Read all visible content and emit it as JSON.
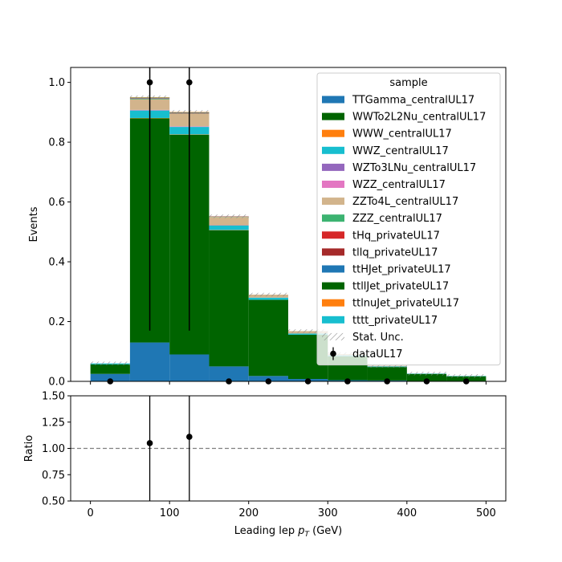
{
  "chart_data": [
    {
      "type": "bar",
      "stacked": true,
      "title": "",
      "xlabel": "",
      "ylabel": "Events",
      "xlim": [
        -25,
        525
      ],
      "ylim": [
        0,
        1.05
      ],
      "yticks": [
        0.0,
        0.2,
        0.4,
        0.6,
        0.8,
        1.0
      ],
      "ytick_labels": [
        "0.0",
        "0.2",
        "0.4",
        "0.6",
        "0.8",
        "1.0"
      ],
      "bin_edges": [
        0,
        50,
        100,
        150,
        200,
        250,
        300,
        350,
        400,
        450,
        500
      ],
      "series": [
        {
          "name": "TTGamma_centralUL17",
          "color": "#1f77b4",
          "values": [
            0.025,
            0.13,
            0.09,
            0.05,
            0.018,
            0.008,
            0.004,
            0.003,
            0.001,
            0.001
          ]
        },
        {
          "name": "WWTo2L2Nu_centralUL17",
          "color": "#006400",
          "values": [
            0.032,
            0.75,
            0.735,
            0.455,
            0.255,
            0.148,
            0.08,
            0.045,
            0.024,
            0.016
          ]
        },
        {
          "name": "WWW_centralUL17",
          "color": "#ff7f0e",
          "values": [
            0.0,
            0.001,
            0.001,
            0.001,
            0.0,
            0.0,
            0.0,
            0.0,
            0.0,
            0.0
          ]
        },
        {
          "name": "WWZ_centralUL17",
          "color": "#17becf",
          "values": [
            0.003,
            0.025,
            0.025,
            0.015,
            0.007,
            0.004,
            0.003,
            0.002,
            0.001,
            0.001
          ]
        },
        {
          "name": "WZTo3LNu_centralUL17",
          "color": "#9467bd",
          "values": [
            0.0,
            0.001,
            0.001,
            0.001,
            0.0,
            0.0,
            0.0,
            0.0,
            0.0,
            0.0
          ]
        },
        {
          "name": "WZZ_centralUL17",
          "color": "#e377c2",
          "values": [
            0.0,
            0.001,
            0.001,
            0.0,
            0.0,
            0.0,
            0.0,
            0.0,
            0.0,
            0.0
          ]
        },
        {
          "name": "ZZTo4L_centralUL17",
          "color": "#d2b48c",
          "values": [
            0.0,
            0.035,
            0.042,
            0.028,
            0.01,
            0.008,
            0.004,
            0.002,
            0.0,
            0.0
          ]
        },
        {
          "name": "ZZZ_centralUL17",
          "color": "#3cb371",
          "values": [
            0.0,
            0.002,
            0.001,
            0.001,
            0.0,
            0.0,
            0.0,
            0.0,
            0.0,
            0.0
          ]
        },
        {
          "name": "tHq_privateUL17",
          "color": "#d62728",
          "values": [
            0.0,
            0.001,
            0.001,
            0.0,
            0.0,
            0.0,
            0.0,
            0.0,
            0.0,
            0.0
          ]
        },
        {
          "name": "tllq_privateUL17",
          "color": "#a52a2a",
          "values": [
            0.0,
            0.001,
            0.001,
            0.001,
            0.0,
            0.0,
            0.0,
            0.0,
            0.0,
            0.0
          ]
        },
        {
          "name": "ttHJet_privateUL17",
          "color": "#1f77b4",
          "values": [
            0.0,
            0.001,
            0.001,
            0.0,
            0.0,
            0.0,
            0.0,
            0.0,
            0.0,
            0.0
          ]
        },
        {
          "name": "ttllJet_privateUL17",
          "color": "#006400",
          "values": [
            0.0,
            0.001,
            0.001,
            0.0,
            0.0,
            0.0,
            0.0,
            0.0,
            0.0,
            0.0
          ]
        },
        {
          "name": "ttlnuJet_privateUL17",
          "color": "#ff7f0e",
          "values": [
            0.0,
            0.001,
            0.001,
            0.0,
            0.0,
            0.0,
            0.0,
            0.0,
            0.0,
            0.0
          ]
        },
        {
          "name": "tttt_privateUL17",
          "color": "#17becf",
          "values": [
            0.0,
            0.0,
            0.0,
            0.0,
            0.0,
            0.0,
            0.0,
            0.0,
            0.0,
            0.0
          ]
        }
      ],
      "stat_unc": {
        "name": "Stat. Unc.",
        "half_width": 0.006
      },
      "data": {
        "name": "dataUL17",
        "x": [
          25,
          75,
          125,
          175,
          225,
          275,
          325,
          375,
          425,
          475
        ],
        "y": [
          0,
          1,
          1,
          0,
          0,
          0,
          0,
          0,
          0,
          0
        ],
        "yerr": [
          0,
          0.83,
          0.83,
          0,
          0,
          0,
          0,
          0,
          0,
          0
        ]
      },
      "legend": {
        "title": "sample",
        "placement": "top-right"
      }
    },
    {
      "type": "scatter",
      "title": "",
      "xlabel": "Leading lep p_T (GeV)",
      "xlabel_main": "Leading lep ",
      "xlabel_sym": "p",
      "xlabel_sub": "T",
      "xlabel_unit": " (GeV)",
      "ylabel": "Ratio",
      "xlim": [
        -25,
        525
      ],
      "ylim": [
        0.5,
        1.5
      ],
      "xticks": [
        0,
        100,
        200,
        300,
        400,
        500
      ],
      "xtick_labels": [
        "0",
        "100",
        "200",
        "300",
        "400",
        "500"
      ],
      "yticks": [
        0.5,
        0.75,
        1.0,
        1.25,
        1.5
      ],
      "ytick_labels": [
        "0.50",
        "0.75",
        "1.00",
        "1.25",
        "1.50"
      ],
      "reference_line": 1.0,
      "points": [
        {
          "x": 75,
          "y": 1.05
        },
        {
          "x": 125,
          "y": 1.11
        }
      ]
    }
  ]
}
